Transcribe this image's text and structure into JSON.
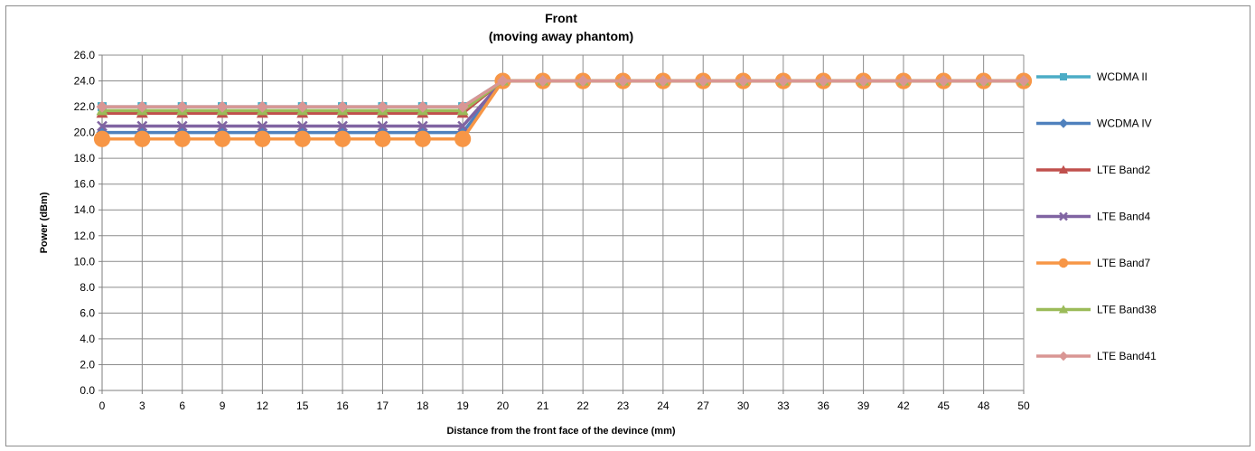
{
  "chart_data": {
    "type": "line",
    "title": [
      "Front",
      "(moving away phantom)"
    ],
    "xlabel": "Distance from the front face of the devince (mm)",
    "ylabel": "Power (dBm)",
    "ylim": [
      0,
      26
    ],
    "ytick_step": 2,
    "y_tick_decimals": 1,
    "grid": true,
    "legend_position": "right",
    "categories": [
      "0",
      "3",
      "6",
      "9",
      "12",
      "15",
      "16",
      "17",
      "18",
      "19",
      "20",
      "21",
      "22",
      "23",
      "24",
      "27",
      "30",
      "33",
      "36",
      "39",
      "42",
      "45",
      "48",
      "50"
    ],
    "series": [
      {
        "name": "WCDMA II",
        "color": "#4bacc6",
        "marker": "square",
        "values": [
          22.0,
          22.0,
          22.0,
          22.0,
          22.0,
          22.0,
          22.0,
          22.0,
          22.0,
          22.0,
          24.0,
          24.0,
          24.0,
          24.0,
          24.0,
          24.0,
          24.0,
          24.0,
          24.0,
          24.0,
          24.0,
          24.0,
          24.0,
          24.0
        ]
      },
      {
        "name": "WCDMA IV",
        "color": "#4f81bd",
        "marker": "diamond",
        "values": [
          20.0,
          20.0,
          20.0,
          20.0,
          20.0,
          20.0,
          20.0,
          20.0,
          20.0,
          20.0,
          24.0,
          24.0,
          24.0,
          24.0,
          24.0,
          24.0,
          24.0,
          24.0,
          24.0,
          24.0,
          24.0,
          24.0,
          24.0,
          24.0
        ]
      },
      {
        "name": "LTE Band2",
        "color": "#c0504d",
        "marker": "triangle",
        "values": [
          21.5,
          21.5,
          21.5,
          21.5,
          21.5,
          21.5,
          21.5,
          21.5,
          21.5,
          21.5,
          24.0,
          24.0,
          24.0,
          24.0,
          24.0,
          24.0,
          24.0,
          24.0,
          24.0,
          24.0,
          24.0,
          24.0,
          24.0,
          24.0
        ]
      },
      {
        "name": "LTE Band4",
        "color": "#8064a2",
        "marker": "x",
        "values": [
          20.5,
          20.5,
          20.5,
          20.5,
          20.5,
          20.5,
          20.5,
          20.5,
          20.5,
          20.5,
          24.0,
          24.0,
          24.0,
          24.0,
          24.0,
          24.0,
          24.0,
          24.0,
          24.0,
          24.0,
          24.0,
          24.0,
          24.0,
          24.0
        ]
      },
      {
        "name": "LTE Band7",
        "color": "#f79646",
        "marker": "circle",
        "values": [
          19.5,
          19.5,
          19.5,
          19.5,
          19.5,
          19.5,
          19.5,
          19.5,
          19.5,
          19.5,
          24.0,
          24.0,
          24.0,
          24.0,
          24.0,
          24.0,
          24.0,
          24.0,
          24.0,
          24.0,
          24.0,
          24.0,
          24.0,
          24.0
        ]
      },
      {
        "name": "LTE Band38",
        "color": "#9bbb59",
        "marker": "triangle",
        "values": [
          21.7,
          21.7,
          21.7,
          21.7,
          21.7,
          21.7,
          21.7,
          21.7,
          21.7,
          21.7,
          24.0,
          24.0,
          24.0,
          24.0,
          24.0,
          24.0,
          24.0,
          24.0,
          24.0,
          24.0,
          24.0,
          24.0,
          24.0,
          24.0
        ]
      },
      {
        "name": "LTE Band41",
        "color": "#d99694",
        "marker": "diamond",
        "values": [
          22.0,
          22.0,
          22.0,
          22.0,
          22.0,
          22.0,
          22.0,
          22.0,
          22.0,
          22.0,
          24.0,
          24.0,
          24.0,
          24.0,
          24.0,
          24.0,
          24.0,
          24.0,
          24.0,
          24.0,
          24.0,
          24.0,
          24.0,
          24.0
        ]
      }
    ]
  }
}
